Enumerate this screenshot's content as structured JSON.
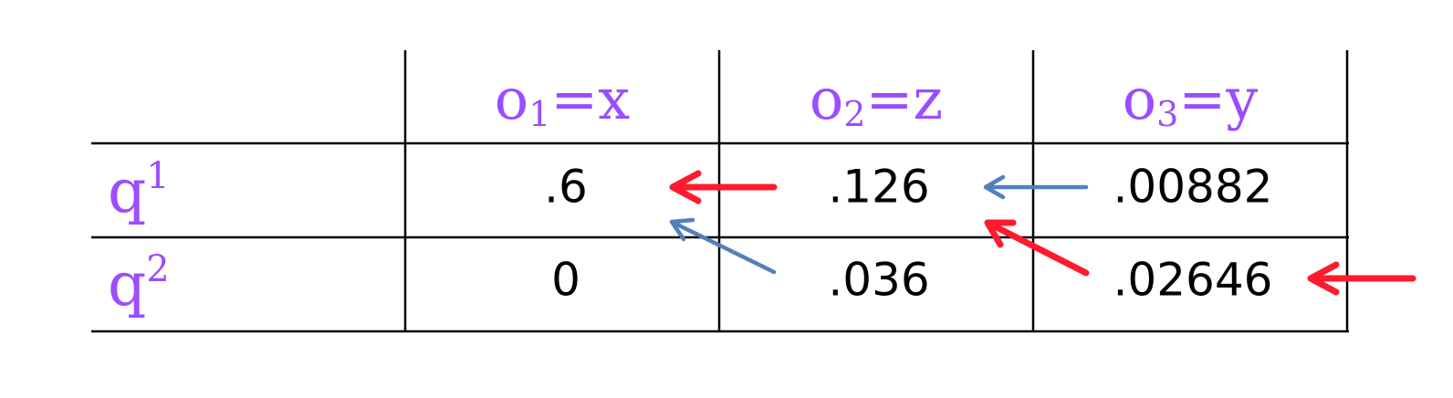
{
  "colors": {
    "label": "#9b4dff",
    "grid": "#000000",
    "arrow_red": "#ff1a2e",
    "arrow_blue": "#4f81bd"
  },
  "table": {
    "columns": [
      {
        "base": "o",
        "sub": "1",
        "rest": "=x"
      },
      {
        "base": "o",
        "sub": "2",
        "rest": "=z"
      },
      {
        "base": "o",
        "sub": "3",
        "rest": "=y"
      }
    ],
    "rows": [
      {
        "base": "q",
        "sup": "1",
        "values": [
          ".6",
          ".126",
          ".00882"
        ]
      },
      {
        "base": "q",
        "sup": "2",
        "values": [
          "0",
          ".036",
          ".02646"
        ]
      }
    ]
  },
  "arrows": [
    {
      "from": "row1-col2",
      "to": "row1-col1",
      "color": "red"
    },
    {
      "from": "row2-col2",
      "to": "row1-col1",
      "color": "blue"
    },
    {
      "from": "row1-col3",
      "to": "row1-col2",
      "color": "blue"
    },
    {
      "from": "row2-col3",
      "to": "row1-col2",
      "color": "red"
    },
    {
      "from": "outside",
      "to": "row2-col3",
      "color": "red"
    }
  ]
}
